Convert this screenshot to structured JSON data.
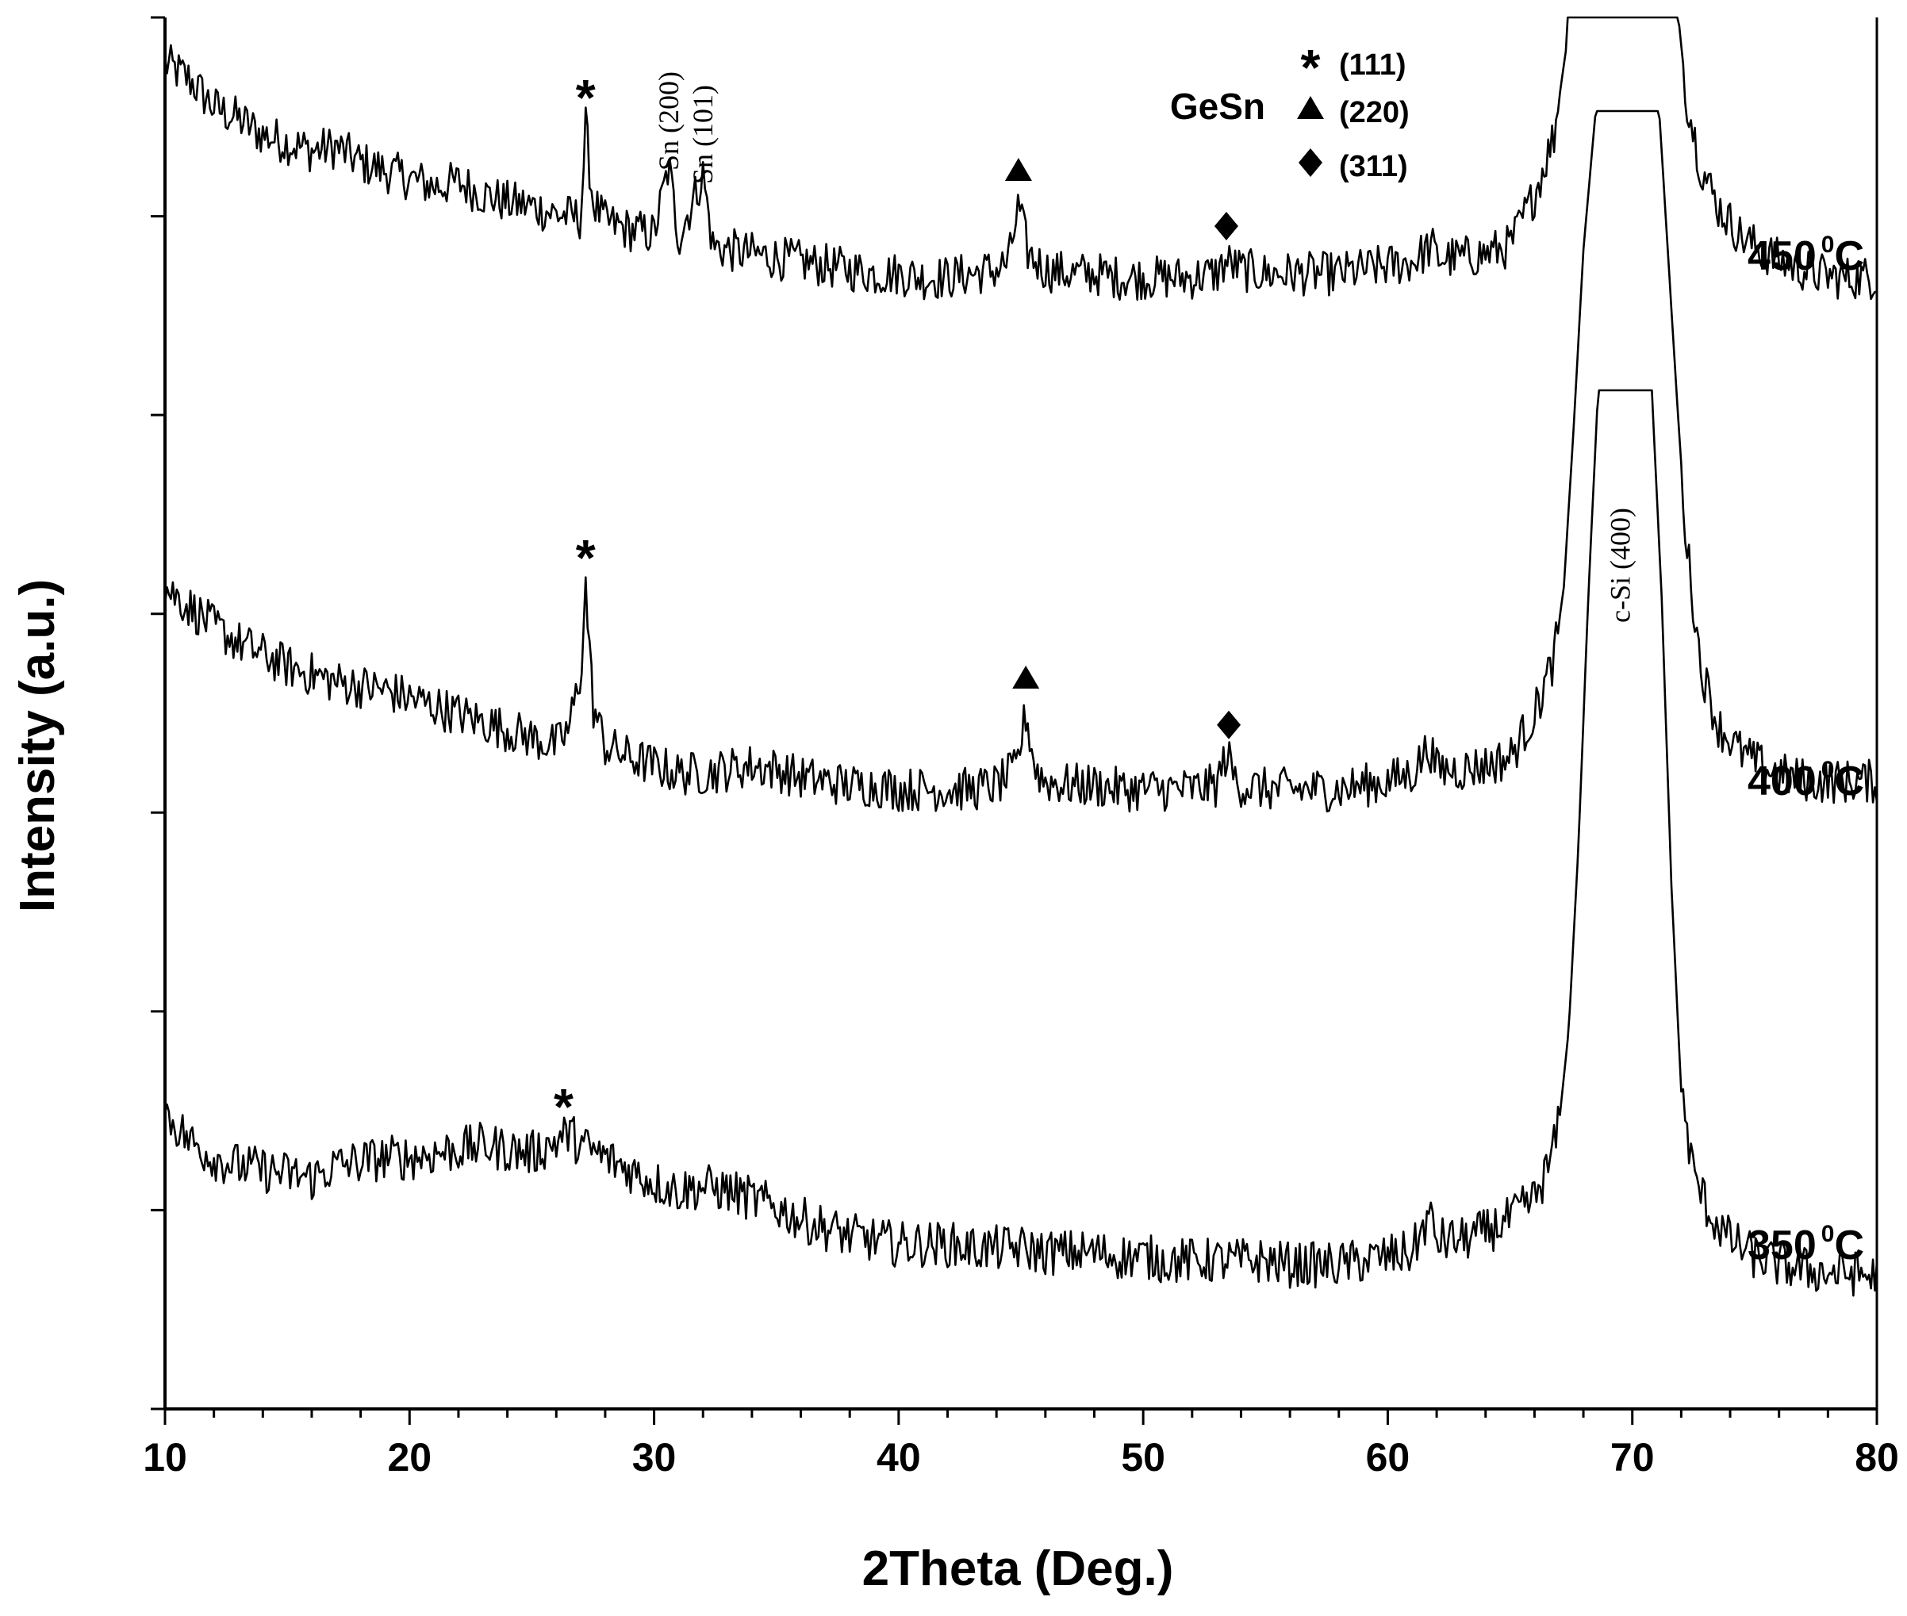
{
  "chart_data": {
    "type": "line",
    "xlabel": "2Theta (Deg.)",
    "ylabel": "Intensity (a.u.)",
    "xlim": [
      10,
      80
    ],
    "x_ticks": [
      "10",
      "20",
      "30",
      "40",
      "50",
      "60",
      "70",
      "80"
    ],
    "grid": false,
    "legend": {
      "position": "top-center",
      "title": "GeSn",
      "entries": [
        {
          "marker": "star",
          "label": "(111)"
        },
        {
          "marker": "triangle",
          "label": "(220)"
        },
        {
          "marker": "diamond",
          "label": "(311)"
        }
      ]
    },
    "peak_labels": [
      {
        "text": "Sn (200)",
        "x": 30.6
      },
      {
        "text": "Sn (101)",
        "x": 32.0
      },
      {
        "text": "c-Si (400)",
        "x": 69.5
      }
    ],
    "series": [
      {
        "name": "450 °C",
        "label_main": "450",
        "label_sup": "0",
        "label_unit": "C",
        "points": [
          [
            10,
            88
          ],
          [
            11,
            84
          ],
          [
            12,
            77
          ],
          [
            13,
            74
          ],
          [
            14,
            70
          ],
          [
            15,
            68
          ],
          [
            16,
            66
          ],
          [
            17,
            67
          ],
          [
            18,
            63
          ],
          [
            19,
            61
          ],
          [
            20,
            59
          ],
          [
            21,
            57
          ],
          [
            22,
            58
          ],
          [
            23,
            55
          ],
          [
            24,
            53
          ],
          [
            25,
            52
          ],
          [
            26,
            50
          ],
          [
            27,
            49
          ],
          [
            27.2,
            72
          ],
          [
            27.5,
            53
          ],
          [
            28,
            48
          ],
          [
            29,
            46
          ],
          [
            30,
            45
          ],
          [
            30.6,
            62
          ],
          [
            31,
            44
          ],
          [
            32,
            60
          ],
          [
            32.4,
            42
          ],
          [
            33,
            41
          ],
          [
            34,
            40
          ],
          [
            35,
            39
          ],
          [
            36,
            38
          ],
          [
            37,
            37
          ],
          [
            38,
            36
          ],
          [
            39,
            35
          ],
          [
            40,
            35
          ],
          [
            41,
            34
          ],
          [
            42,
            34
          ],
          [
            43,
            35
          ],
          [
            44,
            36
          ],
          [
            44.5,
            38
          ],
          [
            44.9,
            52
          ],
          [
            45.3,
            40
          ],
          [
            46,
            36
          ],
          [
            47,
            35
          ],
          [
            48,
            35
          ],
          [
            49,
            34
          ],
          [
            50,
            34
          ],
          [
            51,
            34
          ],
          [
            52,
            34
          ],
          [
            53,
            35
          ],
          [
            53.4,
            38
          ],
          [
            54,
            36
          ],
          [
            55,
            35
          ],
          [
            56,
            35
          ],
          [
            57,
            35
          ],
          [
            58,
            35
          ],
          [
            59,
            36
          ],
          [
            60,
            37
          ],
          [
            61,
            38
          ],
          [
            61.8,
            42
          ],
          [
            62,
            39
          ],
          [
            63,
            39
          ],
          [
            64,
            40
          ],
          [
            65,
            42
          ],
          [
            66,
            55
          ],
          [
            66.8,
            70
          ],
          [
            67.3,
            92
          ],
          [
            67.6,
            130
          ],
          [
            68,
            200
          ],
          [
            71,
            200
          ],
          [
            71.4,
            150
          ],
          [
            71.8,
            105
          ],
          [
            72.2,
            80
          ],
          [
            72.8,
            62
          ],
          [
            73.5,
            52
          ],
          [
            74.5,
            44
          ],
          [
            75.5,
            40
          ],
          [
            76.5,
            37
          ],
          [
            77.5,
            35
          ],
          [
            78.5,
            34
          ],
          [
            79.5,
            34
          ],
          [
            80,
            34
          ]
        ]
      },
      {
        "name": "400 °C",
        "label_main": "400",
        "label_sup": "0",
        "label_unit": "C",
        "points": [
          [
            10,
            80
          ],
          [
            11,
            75
          ],
          [
            12,
            70
          ],
          [
            13,
            66
          ],
          [
            14,
            63
          ],
          [
            15,
            60
          ],
          [
            16,
            58
          ],
          [
            17,
            56
          ],
          [
            18,
            55
          ],
          [
            19,
            54
          ],
          [
            20,
            52
          ],
          [
            21,
            50
          ],
          [
            22,
            48
          ],
          [
            23,
            46
          ],
          [
            24,
            44
          ],
          [
            25,
            42
          ],
          [
            26,
            40
          ],
          [
            26.5,
            44
          ],
          [
            27,
            58
          ],
          [
            27.2,
            80
          ],
          [
            27.5,
            50
          ],
          [
            28,
            40
          ],
          [
            29,
            37
          ],
          [
            30,
            35
          ],
          [
            31,
            33
          ],
          [
            32,
            33
          ],
          [
            33,
            34
          ],
          [
            34,
            35
          ],
          [
            35,
            34
          ],
          [
            36,
            32
          ],
          [
            37,
            31
          ],
          [
            38,
            30
          ],
          [
            39,
            30
          ],
          [
            40,
            29
          ],
          [
            41,
            29
          ],
          [
            42,
            29
          ],
          [
            43,
            29
          ],
          [
            44,
            30
          ],
          [
            44.8,
            34
          ],
          [
            45.2,
            48
          ],
          [
            45.6,
            34
          ],
          [
            46,
            31
          ],
          [
            47,
            30
          ],
          [
            48,
            30
          ],
          [
            49,
            29
          ],
          [
            50,
            29
          ],
          [
            51,
            29
          ],
          [
            52,
            29
          ],
          [
            53,
            30
          ],
          [
            53.4,
            38
          ],
          [
            53.8,
            31
          ],
          [
            54,
            30
          ],
          [
            55,
            29
          ],
          [
            56,
            29
          ],
          [
            57,
            29
          ],
          [
            58,
            29
          ],
          [
            59,
            30
          ],
          [
            60,
            31
          ],
          [
            61,
            33
          ],
          [
            61.7,
            40
          ],
          [
            62,
            34
          ],
          [
            63,
            34
          ],
          [
            64,
            35
          ],
          [
            65,
            37
          ],
          [
            66,
            48
          ],
          [
            66.8,
            62
          ],
          [
            67.2,
            80
          ],
          [
            67.6,
            120
          ],
          [
            68,
            165
          ],
          [
            68.5,
            200
          ],
          [
            71.1,
            200
          ],
          [
            71.5,
            160
          ],
          [
            71.8,
            130
          ],
          [
            72.2,
            92
          ],
          [
            72.8,
            60
          ],
          [
            73.5,
            45
          ],
          [
            74.5,
            38
          ],
          [
            75.5,
            34
          ],
          [
            76.5,
            32
          ],
          [
            77.5,
            31
          ],
          [
            78.5,
            31
          ],
          [
            79.5,
            31
          ],
          [
            80,
            31
          ]
        ]
      },
      {
        "name": "350 °C",
        "label_main": "350",
        "label_sup": "0",
        "label_unit": "C",
        "points": [
          [
            10,
            65
          ],
          [
            11,
            58
          ],
          [
            12,
            54
          ],
          [
            13,
            52
          ],
          [
            14,
            51
          ],
          [
            15,
            50
          ],
          [
            16,
            49
          ],
          [
            17,
            52
          ],
          [
            18,
            53
          ],
          [
            19,
            54
          ],
          [
            20,
            54
          ],
          [
            21,
            55
          ],
          [
            22,
            56
          ],
          [
            23,
            57
          ],
          [
            24,
            56
          ],
          [
            25,
            55
          ],
          [
            26,
            58
          ],
          [
            26.5,
            60
          ],
          [
            27,
            57
          ],
          [
            28,
            54
          ],
          [
            29,
            51
          ],
          [
            30,
            48
          ],
          [
            31,
            46
          ],
          [
            32,
            47
          ],
          [
            33,
            46
          ],
          [
            34,
            44
          ],
          [
            35,
            42
          ],
          [
            36,
            39
          ],
          [
            37,
            37
          ],
          [
            38,
            35
          ],
          [
            39,
            34
          ],
          [
            40,
            33
          ],
          [
            41,
            33
          ],
          [
            42,
            33
          ],
          [
            43,
            32
          ],
          [
            44,
            32
          ],
          [
            45,
            32
          ],
          [
            46,
            31
          ],
          [
            47,
            31
          ],
          [
            48,
            31
          ],
          [
            49,
            30
          ],
          [
            50,
            30
          ],
          [
            51,
            29
          ],
          [
            52,
            29
          ],
          [
            53,
            29
          ],
          [
            54,
            29
          ],
          [
            55,
            29
          ],
          [
            56,
            28
          ],
          [
            57,
            28
          ],
          [
            58,
            28
          ],
          [
            59,
            29
          ],
          [
            60,
            30
          ],
          [
            61,
            31
          ],
          [
            61.7,
            40
          ],
          [
            62,
            34
          ],
          [
            63,
            34
          ],
          [
            64,
            36
          ],
          [
            65,
            39
          ],
          [
            66,
            44
          ],
          [
            66.6,
            52
          ],
          [
            67,
            62
          ],
          [
            67.4,
            85
          ],
          [
            67.8,
            130
          ],
          [
            68.2,
            190
          ],
          [
            68.6,
            240
          ],
          [
            70.8,
            240
          ],
          [
            71.2,
            190
          ],
          [
            71.6,
            120
          ],
          [
            72,
            70
          ],
          [
            72.5,
            50
          ],
          [
            73.2,
            40
          ],
          [
            74,
            34
          ],
          [
            75,
            30
          ],
          [
            76,
            28
          ],
          [
            77,
            27
          ],
          [
            78,
            26
          ],
          [
            79,
            26
          ],
          [
            80,
            25
          ]
        ]
      }
    ],
    "markers": [
      {
        "series": 0,
        "type": "star",
        "x": 27.2
      },
      {
        "series": 0,
        "type": "triangle",
        "x": 44.9
      },
      {
        "series": 0,
        "type": "diamond",
        "x": 53.4
      },
      {
        "series": 1,
        "type": "star",
        "x": 27.2
      },
      {
        "series": 1,
        "type": "triangle",
        "x": 45.2
      },
      {
        "series": 1,
        "type": "diamond",
        "x": 53.5
      },
      {
        "series": 2,
        "type": "star",
        "x": 26.3
      }
    ]
  }
}
